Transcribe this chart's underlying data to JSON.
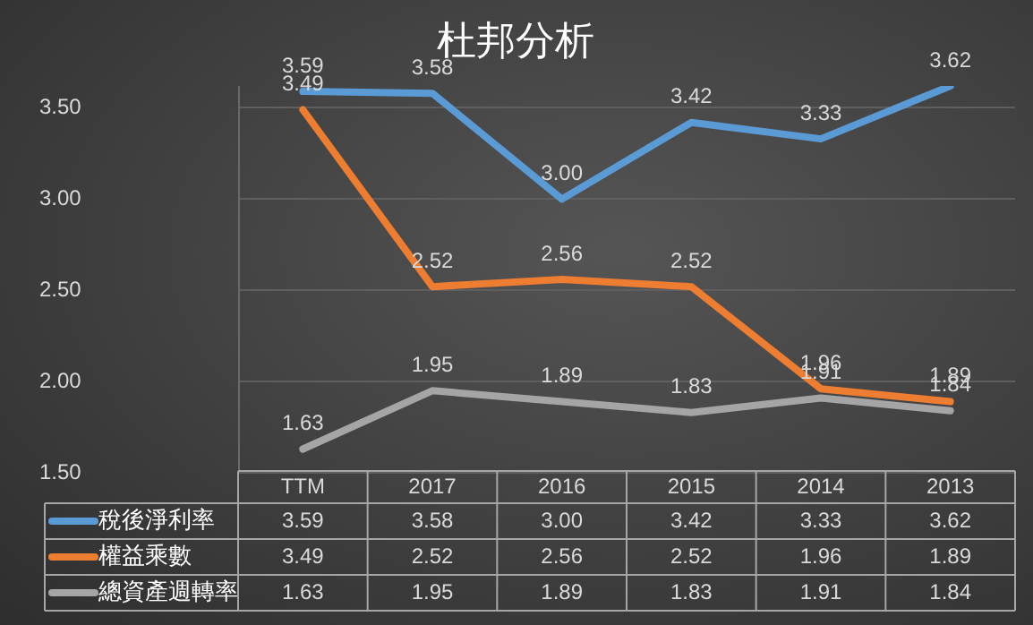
{
  "chart_data": {
    "type": "line",
    "title": "杜邦分析",
    "categories": [
      "TTM",
      "2017",
      "2016",
      "2015",
      "2014",
      "2013"
    ],
    "series": [
      {
        "name": "稅後淨利率",
        "color": "#5b9bd5",
        "values": [
          3.59,
          3.58,
          3.0,
          3.42,
          3.33,
          3.62
        ],
        "value_labels": [
          "3.59",
          "3.58",
          "3.00",
          "3.42",
          "3.33",
          "3.62"
        ]
      },
      {
        "name": "權益乘數",
        "color": "#ed7d31",
        "values": [
          3.49,
          2.52,
          2.56,
          2.52,
          1.96,
          1.89
        ],
        "value_labels": [
          "3.49",
          "2.52",
          "2.56",
          "2.52",
          "1.96",
          "1.89"
        ]
      },
      {
        "name": "總資產週轉率",
        "color": "#a5a5a5",
        "values": [
          1.63,
          1.95,
          1.89,
          1.83,
          1.91,
          1.84
        ],
        "value_labels": [
          "1.63",
          "1.95",
          "1.89",
          "1.83",
          "1.91",
          "1.84"
        ]
      }
    ],
    "ylim": [
      1.5,
      3.62
    ],
    "yticks": [
      {
        "value": 1.5,
        "label": "1.50"
      },
      {
        "value": 2,
        "label": "2.00"
      },
      {
        "value": 2.5,
        "label": "2.50"
      },
      {
        "value": 3,
        "label": "3.00"
      },
      {
        "value": 3.5,
        "label": "3.50"
      }
    ],
    "grid": "y",
    "legend": "bottom",
    "marker": "none",
    "line_style": "solid"
  }
}
